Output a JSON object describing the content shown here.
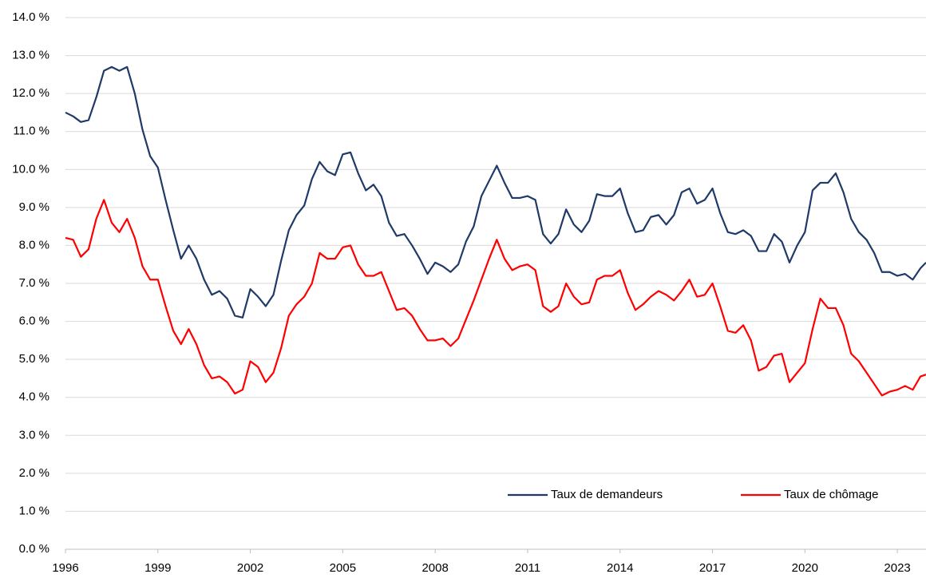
{
  "chart_data": {
    "type": "line",
    "x": [
      1996.0,
      1996.25,
      1996.5,
      1996.75,
      1997.0,
      1997.25,
      1997.5,
      1997.75,
      1998.0,
      1998.25,
      1998.5,
      1998.75,
      1999.0,
      1999.25,
      1999.5,
      1999.75,
      2000.0,
      2000.25,
      2000.5,
      2000.75,
      2001.0,
      2001.25,
      2001.5,
      2001.75,
      2002.0,
      2002.25,
      2002.5,
      2002.75,
      2003.0,
      2003.25,
      2003.5,
      2003.75,
      2004.0,
      2004.25,
      2004.5,
      2004.75,
      2005.0,
      2005.25,
      2005.5,
      2005.75,
      2006.0,
      2006.25,
      2006.5,
      2006.75,
      2007.0,
      2007.25,
      2007.5,
      2007.75,
      2008.0,
      2008.25,
      2008.5,
      2008.75,
      2009.0,
      2009.25,
      2009.5,
      2009.75,
      2010.0,
      2010.25,
      2010.5,
      2010.75,
      2011.0,
      2011.25,
      2011.5,
      2011.75,
      2012.0,
      2012.25,
      2012.5,
      2012.75,
      2013.0,
      2013.25,
      2013.5,
      2013.75,
      2014.0,
      2014.25,
      2014.5,
      2014.75,
      2015.0,
      2015.25,
      2015.5,
      2015.75,
      2016.0,
      2016.25,
      2016.5,
      2016.75,
      2017.0,
      2017.25,
      2017.5,
      2017.75,
      2018.0,
      2018.25,
      2018.5,
      2018.75,
      2019.0,
      2019.25,
      2019.5,
      2019.75,
      2020.0,
      2020.25,
      2020.5,
      2020.75,
      2021.0,
      2021.25,
      2021.5,
      2021.75,
      2022.0,
      2022.25,
      2022.5,
      2022.75,
      2023.0,
      2023.25,
      2023.5,
      2023.75,
      2023.93
    ],
    "series": [
      {
        "name": "Taux de demandeurs",
        "color": "#1f3a68",
        "values": [
          11.5,
          11.4,
          11.25,
          11.3,
          11.9,
          12.6,
          12.7,
          12.6,
          12.7,
          12.0,
          11.05,
          10.35,
          10.05,
          9.2,
          8.4,
          7.65,
          8.0,
          7.65,
          7.1,
          6.7,
          6.8,
          6.6,
          6.15,
          6.1,
          6.85,
          6.65,
          6.4,
          6.7,
          7.6,
          8.4,
          8.8,
          9.05,
          9.75,
          10.2,
          9.95,
          9.85,
          10.4,
          10.45,
          9.9,
          9.45,
          9.6,
          9.3,
          8.6,
          8.25,
          8.3,
          8.0,
          7.65,
          7.25,
          7.55,
          7.45,
          7.3,
          7.5,
          8.1,
          8.5,
          9.3,
          9.7,
          10.1,
          9.65,
          9.25,
          9.25,
          9.3,
          9.2,
          8.3,
          8.05,
          8.3,
          8.95,
          8.55,
          8.35,
          8.65,
          9.35,
          9.3,
          9.3,
          9.5,
          8.85,
          8.35,
          8.4,
          8.75,
          8.8,
          8.55,
          8.8,
          9.4,
          9.5,
          9.1,
          9.2,
          9.5,
          8.85,
          8.35,
          8.3,
          8.4,
          8.25,
          7.85,
          7.85,
          8.3,
          8.1,
          7.55,
          8.0,
          8.35,
          9.45,
          9.65,
          9.65,
          9.9,
          9.4,
          8.7,
          8.35,
          8.15,
          7.8,
          7.3,
          7.3,
          7.2,
          7.25,
          7.1,
          7.4,
          7.55
        ]
      },
      {
        "name": "Taux de chômage",
        "color": "#ff0000",
        "values": [
          8.2,
          8.15,
          7.7,
          7.9,
          8.7,
          9.2,
          8.6,
          8.35,
          8.7,
          8.2,
          7.45,
          7.1,
          7.1,
          6.4,
          5.75,
          5.4,
          5.8,
          5.4,
          4.85,
          4.5,
          4.55,
          4.4,
          4.1,
          4.2,
          4.95,
          4.8,
          4.4,
          4.65,
          5.3,
          6.15,
          6.45,
          6.65,
          7.0,
          7.8,
          7.65,
          7.65,
          7.95,
          8.0,
          7.5,
          7.2,
          7.2,
          7.3,
          6.8,
          6.3,
          6.35,
          6.15,
          5.8,
          5.5,
          5.5,
          5.55,
          5.35,
          5.55,
          6.05,
          6.55,
          7.1,
          7.65,
          8.15,
          7.65,
          7.35,
          7.45,
          7.5,
          7.35,
          6.4,
          6.25,
          6.4,
          7.0,
          6.65,
          6.45,
          6.5,
          7.1,
          7.2,
          7.2,
          7.35,
          6.75,
          6.3,
          6.45,
          6.65,
          6.8,
          6.7,
          6.55,
          6.8,
          7.1,
          6.65,
          6.7,
          7.0,
          6.4,
          5.75,
          5.7,
          5.9,
          5.5,
          4.7,
          4.8,
          5.1,
          5.15,
          4.4,
          4.65,
          4.9,
          5.8,
          6.6,
          6.35,
          6.35,
          5.9,
          5.15,
          4.95,
          4.65,
          4.35,
          4.05,
          4.15,
          4.2,
          4.3,
          4.2,
          4.55,
          4.6
        ]
      }
    ],
    "xlim": [
      1996,
      2023.93
    ],
    "xticks": [
      1996,
      1999,
      2002,
      2005,
      2008,
      2011,
      2014,
      2017,
      2020,
      2023
    ],
    "ylim": [
      0,
      14
    ],
    "yticks": [
      {
        "value": 0,
        "label": "0.0 %"
      },
      {
        "value": 1,
        "label": "1.0 %"
      },
      {
        "value": 2,
        "label": "2.0 %"
      },
      {
        "value": 3,
        "label": "3.0 %"
      },
      {
        "value": 4,
        "label": "4.0 %"
      },
      {
        "value": 5,
        "label": "5.0 %"
      },
      {
        "value": 6,
        "label": "6.0 %"
      },
      {
        "value": 7,
        "label": "7.0 %"
      },
      {
        "value": 8,
        "label": "8.0 %"
      },
      {
        "value": 9,
        "label": "9.0 %"
      },
      {
        "value": 10,
        "label": "10.0 %"
      },
      {
        "value": 11,
        "label": "11.0 %"
      },
      {
        "value": 12,
        "label": "12.0 %"
      },
      {
        "value": 13,
        "label": "13.0 %"
      },
      {
        "value": 14,
        "label": "14.0 %"
      }
    ],
    "grid": true,
    "legend": "lower right"
  }
}
